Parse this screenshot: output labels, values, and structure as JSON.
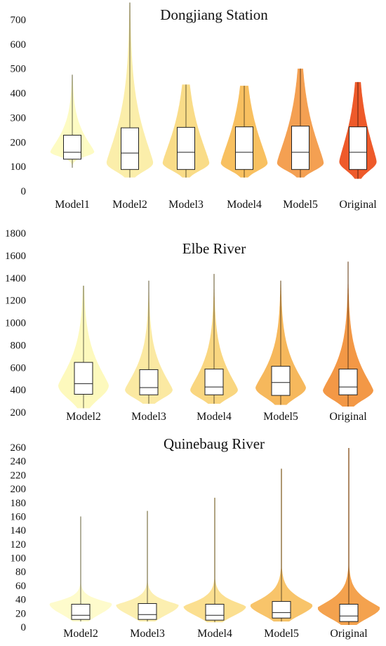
{
  "chart_data": [
    {
      "type": "violin",
      "title": "Dongjiang Station",
      "xlabel": "",
      "ylabel": "",
      "ylim": [
        0,
        700
      ],
      "yticks": [
        0,
        100,
        200,
        300,
        400,
        500,
        600,
        700
      ],
      "grid": false,
      "legend": "none",
      "categories": [
        "Model1",
        "Model2",
        "Model3",
        "Model4",
        "Model5",
        "Original"
      ],
      "series": [
        {
          "category": "Model1",
          "color": "#fdfbc3",
          "min": 95,
          "q1": 130,
          "median": 158,
          "q3": 228,
          "max": 475,
          "peak": 160,
          "half_width_rel": 0.85,
          "lower_tail": 130
        },
        {
          "category": "Model2",
          "color": "#fbeeaa",
          "min": 55,
          "q1": 88,
          "median": 155,
          "q3": 258,
          "max": 770,
          "peak": 115,
          "half_width_rel": 0.9,
          "lower_tail": 60
        },
        {
          "category": "Model3",
          "color": "#f9dc88",
          "min": 55,
          "q1": 88,
          "median": 158,
          "q3": 260,
          "max": 435,
          "peak": 115,
          "half_width_rel": 0.9,
          "lower_tail": 65
        },
        {
          "category": "Model4",
          "color": "#f8c060",
          "min": 55,
          "q1": 88,
          "median": 158,
          "q3": 262,
          "max": 430,
          "peak": 115,
          "half_width_rel": 0.9,
          "lower_tail": 65
        },
        {
          "category": "Model5",
          "color": "#f4a052",
          "min": 55,
          "q1": 88,
          "median": 158,
          "q3": 265,
          "max": 500,
          "peak": 115,
          "half_width_rel": 0.9,
          "lower_tail": 65
        },
        {
          "category": "Original",
          "color": "#ee5a2a",
          "min": 50,
          "q1": 88,
          "median": 158,
          "q3": 262,
          "max": 445,
          "peak": 120,
          "half_width_rel": 0.72,
          "lower_tail": 60
        }
      ]
    },
    {
      "type": "violin",
      "title": "Elbe River",
      "xlabel": "",
      "ylabel": "",
      "ylim": [
        200,
        1800
      ],
      "yticks": [
        200,
        400,
        600,
        800,
        1000,
        1200,
        1400,
        1600,
        1800
      ],
      "grid": false,
      "legend": "none",
      "categories": [
        "Model2",
        "Model3",
        "Model4",
        "Model5",
        "Original"
      ],
      "series": [
        {
          "category": "Model2",
          "color": "#fdf9bd",
          "min": 235,
          "q1": 360,
          "median": 455,
          "q3": 645,
          "max": 1330,
          "peak": 440,
          "half_width_rel": 0.9,
          "lower_tail": 245
        },
        {
          "category": "Model3",
          "color": "#fbe9a2",
          "min": 275,
          "q1": 355,
          "median": 420,
          "q3": 580,
          "max": 1375,
          "peak": 400,
          "half_width_rel": 0.85,
          "lower_tail": 280
        },
        {
          "category": "Model4",
          "color": "#f9d680",
          "min": 275,
          "q1": 355,
          "median": 425,
          "q3": 585,
          "max": 1435,
          "peak": 400,
          "half_width_rel": 0.85,
          "lower_tail": 280
        },
        {
          "category": "Model5",
          "color": "#f6b85c",
          "min": 265,
          "q1": 350,
          "median": 465,
          "q3": 610,
          "max": 1375,
          "peak": 420,
          "half_width_rel": 0.9,
          "lower_tail": 275
        },
        {
          "category": "Original",
          "color": "#f39846",
          "min": 250,
          "q1": 355,
          "median": 425,
          "q3": 585,
          "max": 1545,
          "peak": 395,
          "half_width_rel": 0.9,
          "lower_tail": 260
        }
      ]
    },
    {
      "type": "violin",
      "title": "Quinebaug River",
      "xlabel": "",
      "ylabel": "",
      "ylim": [
        0,
        260
      ],
      "yticks": [
        0,
        20,
        40,
        60,
        80,
        100,
        120,
        140,
        160,
        180,
        200,
        220,
        240,
        260
      ],
      "grid": false,
      "legend": "none",
      "categories": [
        "Model2",
        "Model3",
        "Model4",
        "Model5",
        "Original"
      ],
      "series": [
        {
          "category": "Model2",
          "color": "#fefbcc",
          "min": 8,
          "q1": 11,
          "median": 17,
          "q3": 33,
          "max": 160,
          "peak": 34,
          "half_width_rel": 0.95,
          "lower_tail": 9
        },
        {
          "category": "Model3",
          "color": "#fcefb0",
          "min": 8,
          "q1": 11,
          "median": 18,
          "q3": 34,
          "max": 168,
          "peak": 32,
          "half_width_rel": 0.95,
          "lower_tail": 9
        },
        {
          "category": "Model4",
          "color": "#fbdf90",
          "min": 7,
          "q1": 10,
          "median": 17,
          "q3": 33,
          "max": 187,
          "peak": 30,
          "half_width_rel": 0.95,
          "lower_tail": 8
        },
        {
          "category": "Model5",
          "color": "#f8c46a",
          "min": 8,
          "q1": 13,
          "median": 21,
          "q3": 37,
          "max": 229,
          "peak": 32,
          "half_width_rel": 0.95,
          "lower_tail": 9
        },
        {
          "category": "Original",
          "color": "#f4a24e",
          "min": 3,
          "q1": 8,
          "median": 16,
          "q3": 33,
          "max": 259,
          "peak": 28,
          "half_width_rel": 0.95,
          "lower_tail": 4
        }
      ]
    }
  ]
}
